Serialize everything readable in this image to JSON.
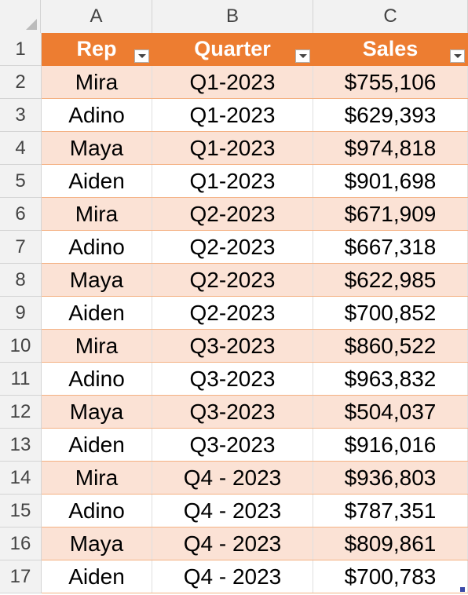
{
  "columns": [
    "A",
    "B",
    "C"
  ],
  "row_numbers": [
    "1",
    "2",
    "3",
    "4",
    "5",
    "6",
    "7",
    "8",
    "9",
    "10",
    "11",
    "12",
    "13",
    "14",
    "15",
    "16",
    "17"
  ],
  "table": {
    "headers": [
      "Rep",
      "Quarter",
      "Sales"
    ],
    "rows": [
      [
        "Mira",
        "Q1-2023",
        "$755,106"
      ],
      [
        "Adino",
        "Q1-2023",
        "$629,393"
      ],
      [
        "Maya",
        "Q1-2023",
        "$974,818"
      ],
      [
        "Aiden",
        "Q1-2023",
        "$901,698"
      ],
      [
        "Mira",
        "Q2-2023",
        "$671,909"
      ],
      [
        "Adino",
        "Q2-2023",
        "$667,318"
      ],
      [
        "Maya",
        "Q2-2023",
        "$622,985"
      ],
      [
        "Aiden",
        "Q2-2023",
        "$700,852"
      ],
      [
        "Mira",
        "Q3-2023",
        "$860,522"
      ],
      [
        "Adino",
        "Q3-2023",
        "$963,832"
      ],
      [
        "Maya",
        "Q3-2023",
        "$504,037"
      ],
      [
        "Aiden",
        "Q3-2023",
        "$916,016"
      ],
      [
        "Mira",
        "Q4 - 2023",
        "$936,803"
      ],
      [
        "Adino",
        "Q4 - 2023",
        "$787,351"
      ],
      [
        "Maya",
        "Q4 - 2023",
        "$809,861"
      ],
      [
        "Aiden",
        "Q4 - 2023",
        "$700,783"
      ]
    ]
  },
  "colors": {
    "header_fill": "#ed7d31",
    "band_fill": "#fbe2d5",
    "header_text": "#ffffff"
  },
  "icons": {
    "filter": "filter-dropdown-icon",
    "select_all": "select-all-icon",
    "resize": "table-resize-handle-icon"
  }
}
